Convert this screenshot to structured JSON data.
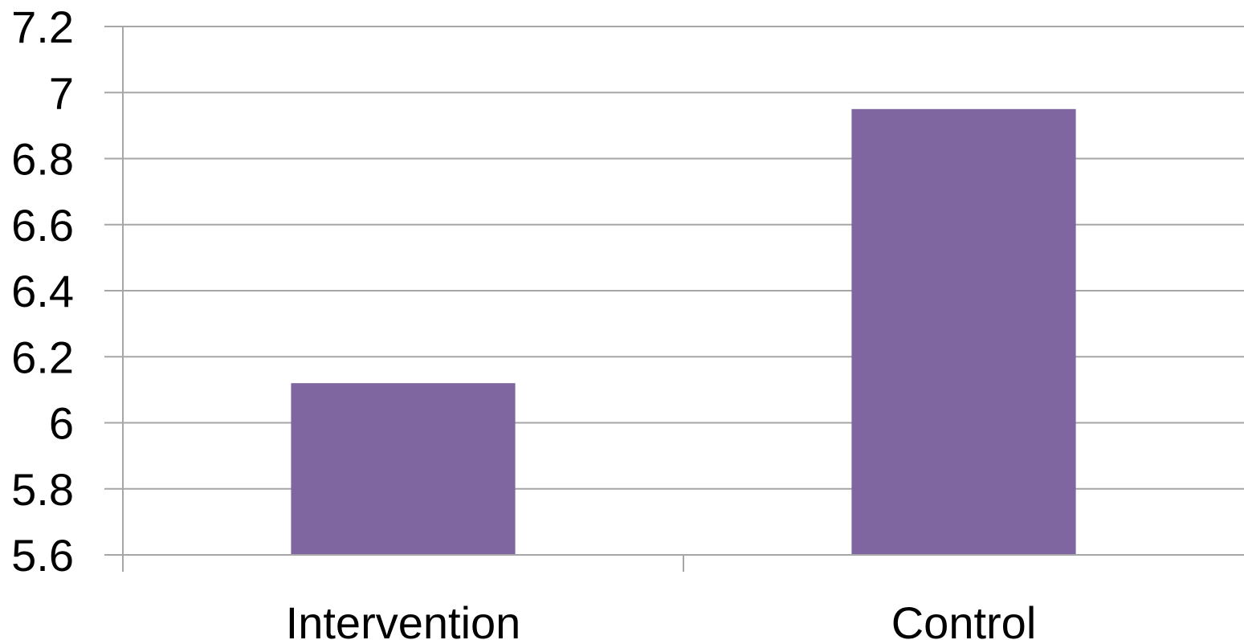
{
  "chart_data": {
    "type": "bar",
    "categories": [
      "Intervention",
      "Control"
    ],
    "values": [
      6.12,
      6.95
    ],
    "ylim": [
      5.6,
      7.2
    ],
    "yticks": [
      "5.6",
      "5.8",
      "6",
      "6.2",
      "6.4",
      "6.6",
      "6.8",
      "7",
      "7.2"
    ],
    "grid": true,
    "legend": "none",
    "colors": {
      "bar": "#8066a0",
      "grid": "#a6a6a6"
    }
  }
}
